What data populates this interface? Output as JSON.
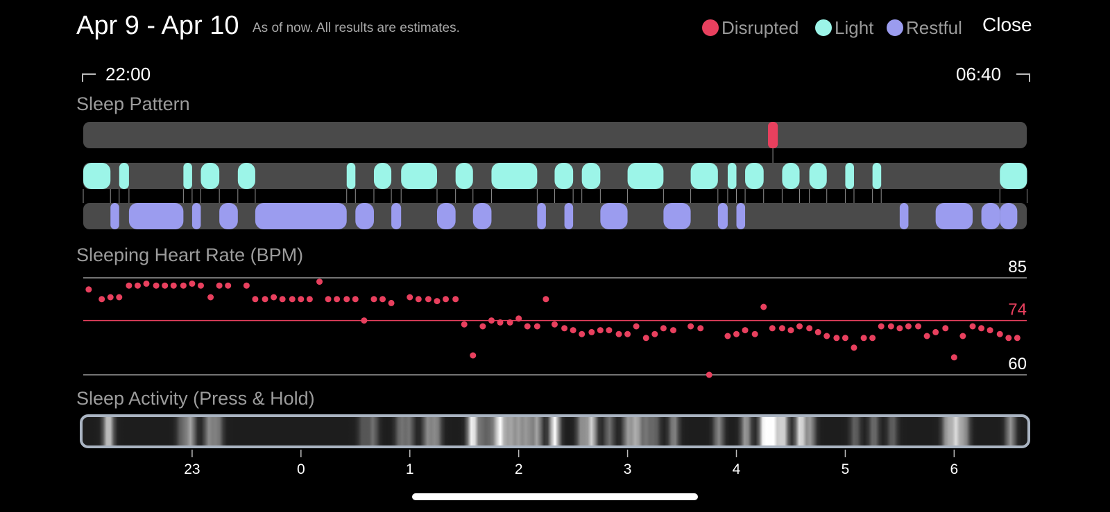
{
  "header": {
    "title": "Apr 9 - Apr 10",
    "subtitle": "As of now. All results are estimates.",
    "close_label": "Close"
  },
  "legend": [
    {
      "label": "Disrupted",
      "color": "#e8405e"
    },
    {
      "label": "Light",
      "color": "#9cf5e8"
    },
    {
      "label": "Restful",
      "color": "#9b9cef"
    }
  ],
  "time_range": {
    "start": "22:00",
    "end": "06:40"
  },
  "sections": {
    "sleep_pattern": "Sleep Pattern",
    "heart_rate": "Sleeping Heart Rate (BPM)",
    "activity": "Sleep Activity (Press & Hold)"
  },
  "sleep_pattern": {
    "x_unit": "hours since 22:00",
    "x_range": [
      0,
      8.667
    ],
    "disrupted": [
      [
        6.29,
        6.38
      ]
    ],
    "light": [
      [
        0.0,
        0.25
      ],
      [
        0.33,
        0.42
      ],
      [
        0.92,
        1.0
      ],
      [
        1.08,
        1.25
      ],
      [
        1.42,
        1.58
      ],
      [
        2.42,
        2.5
      ],
      [
        2.67,
        2.83
      ],
      [
        2.92,
        3.25
      ],
      [
        3.42,
        3.58
      ],
      [
        3.75,
        4.17
      ],
      [
        4.33,
        4.5
      ],
      [
        4.58,
        4.75
      ],
      [
        5.0,
        5.33
      ],
      [
        5.58,
        5.83
      ],
      [
        5.92,
        6.0
      ],
      [
        6.08,
        6.25
      ],
      [
        6.42,
        6.58
      ],
      [
        6.67,
        6.83
      ],
      [
        7.0,
        7.08
      ],
      [
        7.25,
        7.33
      ],
      [
        8.42,
        8.67
      ]
    ],
    "restful": [
      [
        0.25,
        0.33
      ],
      [
        0.42,
        0.92
      ],
      [
        1.0,
        1.08
      ],
      [
        1.25,
        1.42
      ],
      [
        1.58,
        2.42
      ],
      [
        2.5,
        2.67
      ],
      [
        2.83,
        2.92
      ],
      [
        3.25,
        3.42
      ],
      [
        3.58,
        3.75
      ],
      [
        4.17,
        4.25
      ],
      [
        4.42,
        4.5
      ],
      [
        4.75,
        5.0
      ],
      [
        5.33,
        5.58
      ],
      [
        5.83,
        5.92
      ],
      [
        6.0,
        6.08
      ],
      [
        7.5,
        7.58
      ],
      [
        7.83,
        8.17
      ],
      [
        8.25,
        8.42
      ],
      [
        8.42,
        8.58
      ]
    ]
  },
  "heart_rate": {
    "labels": {
      "max": "85",
      "avg": "74",
      "min": "60"
    },
    "max": 85,
    "avg": 74,
    "min": 60,
    "points": [
      [
        0.05,
        82
      ],
      [
        0.17,
        79.5
      ],
      [
        0.25,
        80
      ],
      [
        0.33,
        80
      ],
      [
        0.42,
        83
      ],
      [
        0.5,
        83
      ],
      [
        0.58,
        83.5
      ],
      [
        0.67,
        83
      ],
      [
        0.75,
        83
      ],
      [
        0.83,
        83
      ],
      [
        0.92,
        83
      ],
      [
        1.0,
        83.5
      ],
      [
        1.08,
        83
      ],
      [
        1.17,
        80
      ],
      [
        1.25,
        83
      ],
      [
        1.33,
        83
      ],
      [
        1.5,
        83
      ],
      [
        1.58,
        79.5
      ],
      [
        1.67,
        79.5
      ],
      [
        1.75,
        80
      ],
      [
        1.83,
        79.5
      ],
      [
        1.92,
        79.5
      ],
      [
        2.0,
        79.5
      ],
      [
        2.08,
        79.5
      ],
      [
        2.17,
        84
      ],
      [
        2.25,
        79.5
      ],
      [
        2.33,
        79.5
      ],
      [
        2.42,
        79.5
      ],
      [
        2.5,
        79.5
      ],
      [
        2.58,
        74
      ],
      [
        2.67,
        79.5
      ],
      [
        2.75,
        79.5
      ],
      [
        2.83,
        78.5
      ],
      [
        3.0,
        80
      ],
      [
        3.08,
        79.5
      ],
      [
        3.17,
        79.5
      ],
      [
        3.25,
        79
      ],
      [
        3.33,
        79.5
      ],
      [
        3.42,
        79.5
      ],
      [
        3.5,
        73
      ],
      [
        3.58,
        65
      ],
      [
        3.67,
        72.5
      ],
      [
        3.75,
        74
      ],
      [
        3.83,
        73.5
      ],
      [
        3.92,
        73.5
      ],
      [
        4.0,
        74.5
      ],
      [
        4.08,
        72.5
      ],
      [
        4.17,
        72.5
      ],
      [
        4.25,
        79.5
      ],
      [
        4.33,
        73
      ],
      [
        4.42,
        72
      ],
      [
        4.5,
        71.5
      ],
      [
        4.58,
        70.5
      ],
      [
        4.67,
        71
      ],
      [
        4.75,
        71.5
      ],
      [
        4.83,
        71.5
      ],
      [
        4.92,
        70.5
      ],
      [
        5.0,
        70.5
      ],
      [
        5.08,
        72.5
      ],
      [
        5.17,
        69.5
      ],
      [
        5.25,
        70.5
      ],
      [
        5.33,
        72
      ],
      [
        5.42,
        71.5
      ],
      [
        5.58,
        72.5
      ],
      [
        5.67,
        72
      ],
      [
        5.75,
        60
      ],
      [
        5.92,
        70
      ],
      [
        6.0,
        70.5
      ],
      [
        6.08,
        71.5
      ],
      [
        6.17,
        70.5
      ],
      [
        6.25,
        77.5
      ],
      [
        6.33,
        72
      ],
      [
        6.42,
        72
      ],
      [
        6.5,
        71.5
      ],
      [
        6.58,
        72.5
      ],
      [
        6.67,
        72
      ],
      [
        6.75,
        71
      ],
      [
        6.83,
        70
      ],
      [
        6.92,
        69.5
      ],
      [
        7.0,
        69.5
      ],
      [
        7.08,
        67
      ],
      [
        7.17,
        69.5
      ],
      [
        7.25,
        69.5
      ],
      [
        7.33,
        72.5
      ],
      [
        7.42,
        72.5
      ],
      [
        7.5,
        72
      ],
      [
        7.58,
        72.5
      ],
      [
        7.67,
        72.5
      ],
      [
        7.75,
        70
      ],
      [
        7.83,
        71
      ],
      [
        7.92,
        72
      ],
      [
        8.0,
        64.5
      ],
      [
        8.08,
        70
      ],
      [
        8.17,
        72.5
      ],
      [
        8.25,
        72
      ],
      [
        8.33,
        71.5
      ],
      [
        8.42,
        70.5
      ],
      [
        8.5,
        69.5
      ],
      [
        8.58,
        69.5
      ]
    ]
  },
  "activity": {
    "tick_labels": [
      "23",
      "0",
      "1",
      "2",
      "3",
      "4",
      "5",
      "6"
    ],
    "tick_hours": [
      1,
      2,
      3,
      4,
      5,
      6,
      7,
      8
    ],
    "intensity": [
      [
        0.25,
        0.75
      ],
      [
        0.92,
        0.3
      ],
      [
        1.0,
        0.55
      ],
      [
        1.17,
        0.45
      ],
      [
        1.25,
        0.4
      ],
      [
        2.58,
        0.25
      ],
      [
        2.67,
        0.35
      ],
      [
        2.92,
        0.35
      ],
      [
        3.0,
        0.35
      ],
      [
        3.17,
        0.45
      ],
      [
        3.25,
        0.45
      ],
      [
        3.58,
        0.95
      ],
      [
        3.67,
        0.3
      ],
      [
        3.75,
        0.3
      ],
      [
        3.83,
        0.95
      ],
      [
        3.92,
        0.55
      ],
      [
        4.0,
        0.5
      ],
      [
        4.08,
        0.5
      ],
      [
        4.17,
        0.55
      ],
      [
        4.33,
        0.95
      ],
      [
        4.58,
        0.5
      ],
      [
        4.67,
        0.75
      ],
      [
        4.83,
        0.35
      ],
      [
        5.0,
        0.5
      ],
      [
        5.08,
        0.6
      ],
      [
        5.17,
        0.35
      ],
      [
        5.25,
        0.3
      ],
      [
        5.42,
        0.45
      ],
      [
        5.83,
        0.45
      ],
      [
        6.08,
        0.55
      ],
      [
        6.25,
        1.0
      ],
      [
        6.33,
        1.0
      ],
      [
        6.42,
        0.8
      ],
      [
        6.58,
        0.85
      ],
      [
        6.67,
        0.5
      ],
      [
        7.08,
        0.3
      ],
      [
        7.25,
        0.35
      ],
      [
        7.42,
        0.3
      ],
      [
        7.92,
        0.55
      ],
      [
        8.0,
        0.75
      ],
      [
        8.08,
        0.5
      ],
      [
        8.5,
        0.5
      ]
    ]
  }
}
